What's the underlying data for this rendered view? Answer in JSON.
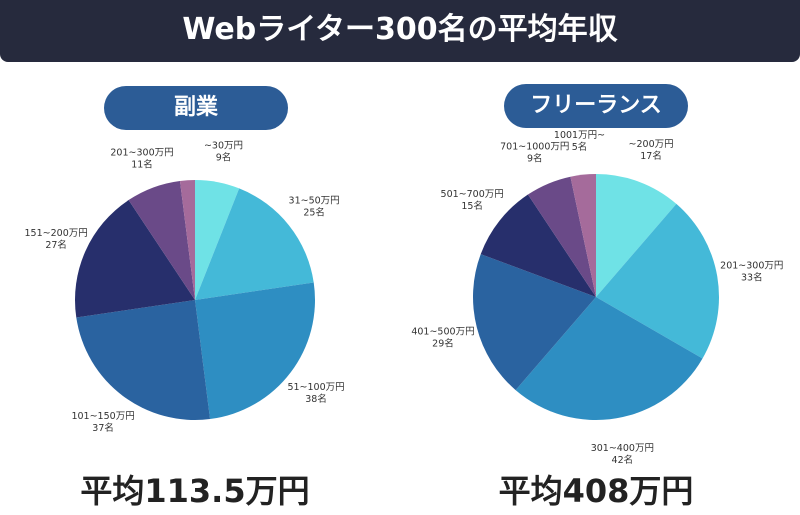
{
  "title": "Webライター300名の平均年収",
  "chart_data": [
    {
      "type": "pie",
      "title": "副業",
      "start": "top",
      "direction": "clockwise",
      "labels": [
        "~30万円",
        "31~50万円",
        "51~100万円",
        "101~150万円",
        "151~200万円",
        "201~300万円",
        ""
      ],
      "values": [
        9,
        25,
        38,
        37,
        27,
        11,
        3
      ],
      "value_labels": [
        "9名",
        "25名",
        "38名",
        "37名",
        "27名",
        "11名",
        ""
      ],
      "colors": [
        "#6fe2e6",
        "#44b9d8",
        "#2e8ec2",
        "#2a63a0",
        "#272f6c",
        "#6a4a88",
        "#a56b9b"
      ],
      "average": "平均113.5万円"
    },
    {
      "type": "pie",
      "title": "フリーランス",
      "start": "top",
      "direction": "clockwise",
      "labels": [
        "~200万円",
        "201~300万円",
        "301~400万円",
        "401~500万円",
        "501~700万円",
        "701~1000万円",
        "1001万円~"
      ],
      "values": [
        17,
        33,
        42,
        29,
        15,
        9,
        5
      ],
      "value_labels": [
        "17名",
        "33名",
        "42名",
        "29名",
        "15名",
        "9名",
        "5名"
      ],
      "colors": [
        "#6fe2e6",
        "#44b9d8",
        "#2e8ec2",
        "#2a63a0",
        "#272f6c",
        "#6a4a88",
        "#a56b9b"
      ],
      "average": "平均408万円"
    }
  ]
}
